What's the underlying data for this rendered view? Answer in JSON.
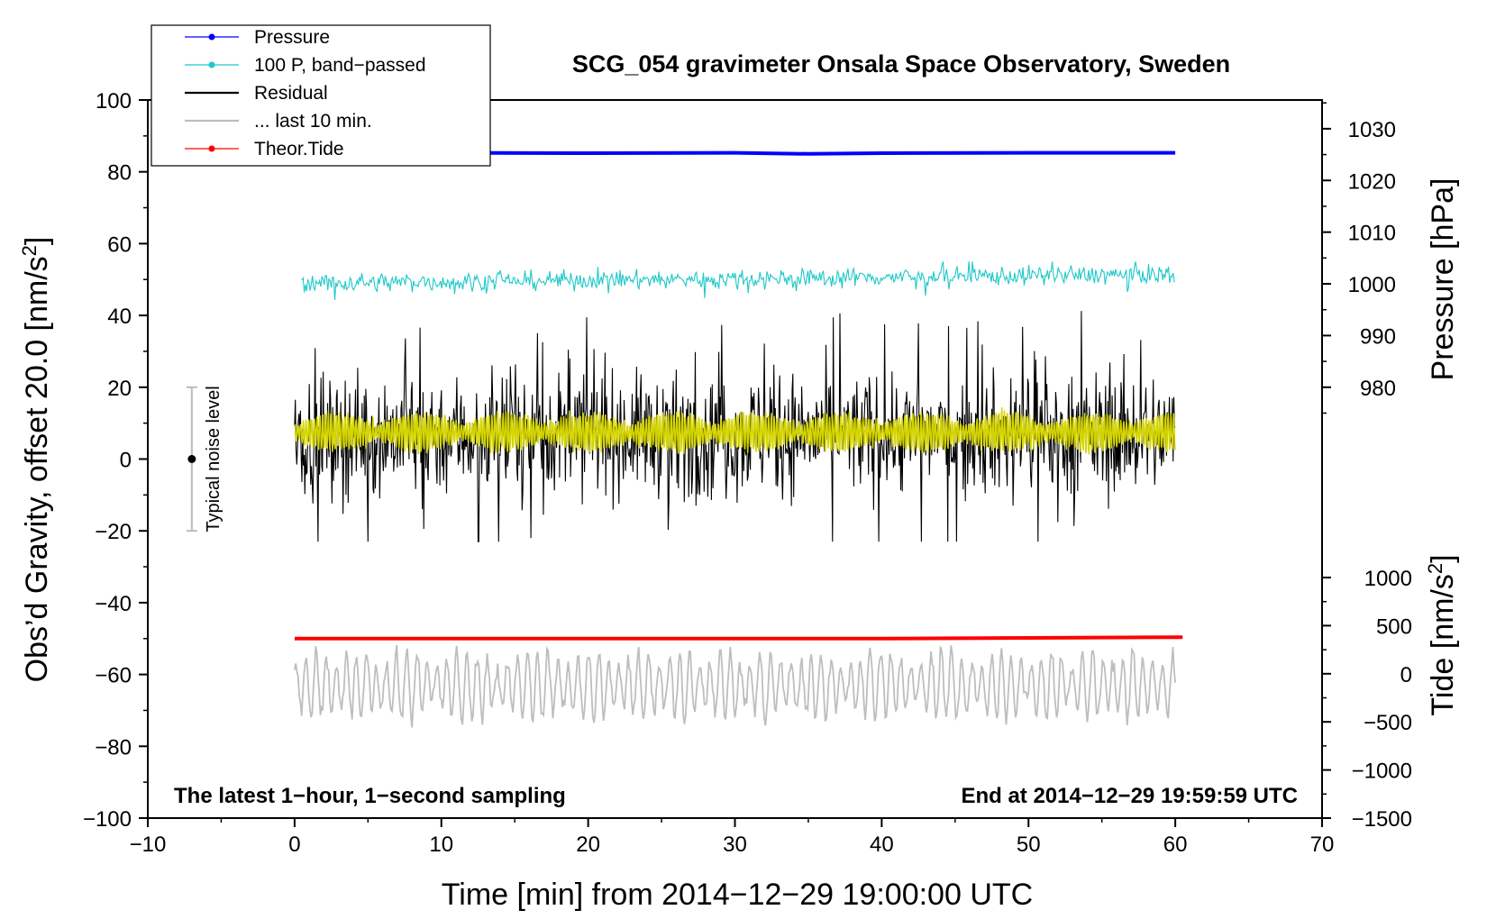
{
  "chart_data": {
    "type": "line",
    "title": "SCG_054 gravimeter Onsala Space Observatory, Sweden",
    "xlabel": "Time [min] from 2014−12−29 19:00:00 UTC",
    "ylabel_left": "Obs’d Gravity, offset 20.0 [nm/s²]",
    "ylabel_left_main": "Obs’d Gravity, offset 20.0 [nm/s",
    "ylabel_left_sup": "2",
    "ylabel_left_end": "]",
    "ylabel_right_pressure": "Pressure [hPa]",
    "ylabel_right_tide_main": "Tide [nm/s",
    "ylabel_right_tide_sup": "2",
    "ylabel_right_tide_end": "]",
    "xlim": [
      -10,
      70
    ],
    "ylim_left": [
      -100,
      100
    ],
    "x_ticks": [
      "−10",
      "0",
      "10",
      "20",
      "30",
      "40",
      "50",
      "60",
      "70"
    ],
    "x_tick_values": [
      -10,
      0,
      10,
      20,
      30,
      40,
      50,
      60,
      70
    ],
    "y_left_ticks": [
      "−100",
      "−80",
      "−60",
      "−40",
      "−20",
      "0",
      "20",
      "40",
      "60",
      "80",
      "100"
    ],
    "y_left_tick_values": [
      -100,
      -80,
      -60,
      -40,
      -20,
      0,
      20,
      40,
      60,
      80,
      100
    ],
    "pressure_ticks": [
      "980",
      "990",
      "1000",
      "1010",
      "1020",
      "1030"
    ],
    "pressure_tick_values": [
      980,
      990,
      1000,
      1010,
      1020,
      1030
    ],
    "pressure_ylim": [
      980,
      1030
    ],
    "pressure_left_range": [
      20,
      92
    ],
    "tide_ticks": [
      "−1500",
      "−1000",
      "−500",
      "0",
      "500",
      "1000"
    ],
    "tide_tick_values": [
      -1500,
      -1000,
      -500,
      0,
      500,
      1000
    ],
    "tide_left_range": [
      -100,
      -33
    ],
    "noise_bar": {
      "label": "Typical noise level",
      "x": -7,
      "center": 0,
      "low": -20,
      "high": 20
    },
    "notes": {
      "left": "The latest 1−hour, 1−second sampling",
      "right": "End at 2014−12−29 19:59:59 UTC"
    },
    "legend": [
      {
        "label": "Pressure",
        "color": "#0000ff",
        "marker": true
      },
      {
        "label": "100 P, band−passed",
        "color": "#20c8c8",
        "marker": true
      },
      {
        "label": "Residual",
        "color": "#000000",
        "marker": false
      },
      {
        "label": "... last 10 min.",
        "color": "#bebebe",
        "marker": false
      },
      {
        "label": "Theor.Tide",
        "color": "#ff0000",
        "marker": true
      }
    ],
    "series": [
      {
        "name": "Pressure",
        "color": "#0000ff",
        "x": [
          0,
          10,
          20,
          30,
          35,
          40,
          50,
          60
        ],
        "values": [
          85.3,
          85.3,
          85.2,
          85.3,
          85.0,
          85.2,
          85.3,
          85.3
        ]
      },
      {
        "name": "100 P, band−passed",
        "color": "#20c8c8",
        "x_start": 0.5,
        "x_end": 60,
        "mean_start": 49,
        "mean_end": 51.5,
        "amplitude": 2.5,
        "max": 55,
        "min": 42
      },
      {
        "name": "Residual",
        "color": "#000000",
        "x_start": 0,
        "x_end": 60,
        "mean": 7,
        "amplitude": 15,
        "max": 42,
        "min": -23
      },
      {
        "name": "Residual smoothed",
        "color": "#d4d400",
        "x_start": 0,
        "x_end": 60,
        "mean": 7.5,
        "amplitude": 4
      },
      {
        "name": "... last 10 min.",
        "color": "#bebebe",
        "x_start": 0,
        "x_end": 60,
        "mean": -63,
        "amplitude": 8,
        "max": -42,
        "min": -82
      },
      {
        "name": "Theor.Tide",
        "color": "#ff0000",
        "x": [
          0,
          20,
          40,
          50,
          60.5
        ],
        "values": [
          -50.0,
          -50.0,
          -50.0,
          -49.8,
          -49.6
        ]
      }
    ]
  }
}
